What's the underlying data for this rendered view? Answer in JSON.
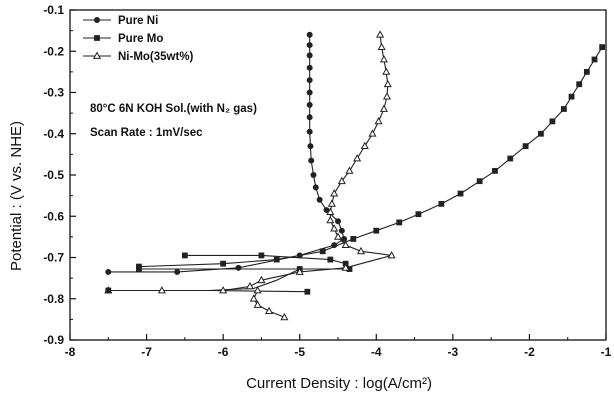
{
  "chart_data": {
    "type": "line",
    "xlabel": "Current Density : log(A/cm²)",
    "ylabel": "Potential : (V vs. NHE)",
    "xlim": [
      -8,
      -1
    ],
    "ylim": [
      -0.9,
      -0.1
    ],
    "x_ticks": [
      "-8",
      "-7",
      "-6",
      "-5",
      "-4",
      "-3",
      "-2",
      "-1"
    ],
    "y_ticks": [
      "-0.1",
      "-0.2",
      "-0.3",
      "-0.4",
      "-0.5",
      "-0.6",
      "-0.7",
      "-0.8",
      "-0.9"
    ],
    "grid": false,
    "legend_position": "top-left",
    "annotations": [
      {
        "text": "80°C 6N KOH Sol.(with N₂ gas)"
      },
      {
        "text": "Scan Rate : 1mV/sec"
      }
    ],
    "series": [
      {
        "name": "Pure Ni",
        "marker": "circle",
        "color": "#222222",
        "points": [
          [
            -7.5,
            -0.735
          ],
          [
            -6.6,
            -0.735
          ],
          [
            -5.8,
            -0.725
          ],
          [
            -5.0,
            -0.695
          ],
          [
            -4.55,
            -0.67
          ],
          [
            -4.42,
            -0.655
          ],
          [
            -4.45,
            -0.635
          ],
          [
            -4.5,
            -0.612
          ],
          [
            -4.65,
            -0.585
          ],
          [
            -4.74,
            -0.56
          ],
          [
            -4.79,
            -0.53
          ],
          [
            -4.82,
            -0.5
          ],
          [
            -4.85,
            -0.465
          ],
          [
            -4.86,
            -0.43
          ],
          [
            -4.87,
            -0.395
          ],
          [
            -4.87,
            -0.36
          ],
          [
            -4.87,
            -0.33
          ],
          [
            -4.87,
            -0.3
          ],
          [
            -4.87,
            -0.27
          ],
          [
            -4.87,
            -0.24
          ],
          [
            -4.87,
            -0.21
          ],
          [
            -4.87,
            -0.185
          ],
          [
            -4.87,
            -0.16
          ]
        ]
      },
      {
        "name": "Pure Mo",
        "marker": "square",
        "color": "#222222",
        "points": [
          [
            -6.5,
            -0.695
          ],
          [
            -5.5,
            -0.695
          ],
          [
            -4.6,
            -0.705
          ],
          [
            -4.4,
            -0.715
          ],
          [
            -4.35,
            -0.728
          ],
          [
            -5.0,
            -0.728
          ],
          [
            -7.1,
            -0.728
          ],
          [
            -7.1,
            -0.722
          ],
          [
            -6.0,
            -0.715
          ],
          [
            -5.3,
            -0.705
          ],
          [
            -4.7,
            -0.685
          ],
          [
            -4.3,
            -0.655
          ],
          [
            -4.0,
            -0.635
          ],
          [
            -3.7,
            -0.615
          ],
          [
            -3.45,
            -0.595
          ],
          [
            -3.15,
            -0.57
          ],
          [
            -2.9,
            -0.545
          ],
          [
            -2.65,
            -0.515
          ],
          [
            -2.45,
            -0.49
          ],
          [
            -2.25,
            -0.46
          ],
          [
            -2.05,
            -0.43
          ],
          [
            -1.85,
            -0.4
          ],
          [
            -1.7,
            -0.37
          ],
          [
            -1.55,
            -0.34
          ],
          [
            -1.45,
            -0.31
          ],
          [
            -1.35,
            -0.28
          ],
          [
            -1.25,
            -0.25
          ],
          [
            -1.15,
            -0.22
          ],
          [
            -1.05,
            -0.19
          ]
        ]
      },
      {
        "name": "Ni-Mo(35wt%)",
        "marker": "triangle",
        "color": "#222222",
        "points": [
          [
            -7.5,
            -0.78
          ],
          [
            -6.8,
            -0.78
          ],
          [
            -6.0,
            -0.78
          ],
          [
            -5.65,
            -0.77
          ],
          [
            -5.5,
            -0.755
          ],
          [
            -5.0,
            -0.735
          ],
          [
            -4.4,
            -0.725
          ],
          [
            -3.8,
            -0.695
          ],
          [
            -4.2,
            -0.685
          ],
          [
            -4.4,
            -0.67
          ],
          [
            -4.5,
            -0.65
          ],
          [
            -4.55,
            -0.63
          ],
          [
            -4.6,
            -0.61
          ],
          [
            -4.6,
            -0.59
          ],
          [
            -4.58,
            -0.57
          ],
          [
            -4.55,
            -0.545
          ],
          [
            -4.45,
            -0.515
          ],
          [
            -4.35,
            -0.49
          ],
          [
            -4.25,
            -0.46
          ],
          [
            -4.15,
            -0.43
          ],
          [
            -4.05,
            -0.4
          ],
          [
            -3.97,
            -0.37
          ],
          [
            -3.9,
            -0.34
          ],
          [
            -3.86,
            -0.31
          ],
          [
            -3.85,
            -0.28
          ],
          [
            -3.87,
            -0.25
          ],
          [
            -3.9,
            -0.22
          ],
          [
            -3.93,
            -0.19
          ],
          [
            -3.95,
            -0.16
          ],
          [
            -5.55,
            -0.78
          ],
          [
            -5.6,
            -0.8
          ],
          [
            -5.55,
            -0.815
          ],
          [
            -5.4,
            -0.83
          ],
          [
            -5.2,
            -0.845
          ]
        ]
      }
    ],
    "side_branches": [
      {
        "series": "Pure Mo",
        "points": [
          [
            -5.0,
            -0.728
          ],
          [
            -5.3,
            -0.755
          ],
          [
            -5.6,
            -0.775
          ],
          [
            -6.2,
            -0.78
          ],
          [
            -7.5,
            -0.78
          ]
        ]
      },
      {
        "series": "Pure Mo",
        "points": [
          [
            -6.2,
            -0.78
          ],
          [
            -4.9,
            -0.783
          ]
        ]
      }
    ]
  }
}
